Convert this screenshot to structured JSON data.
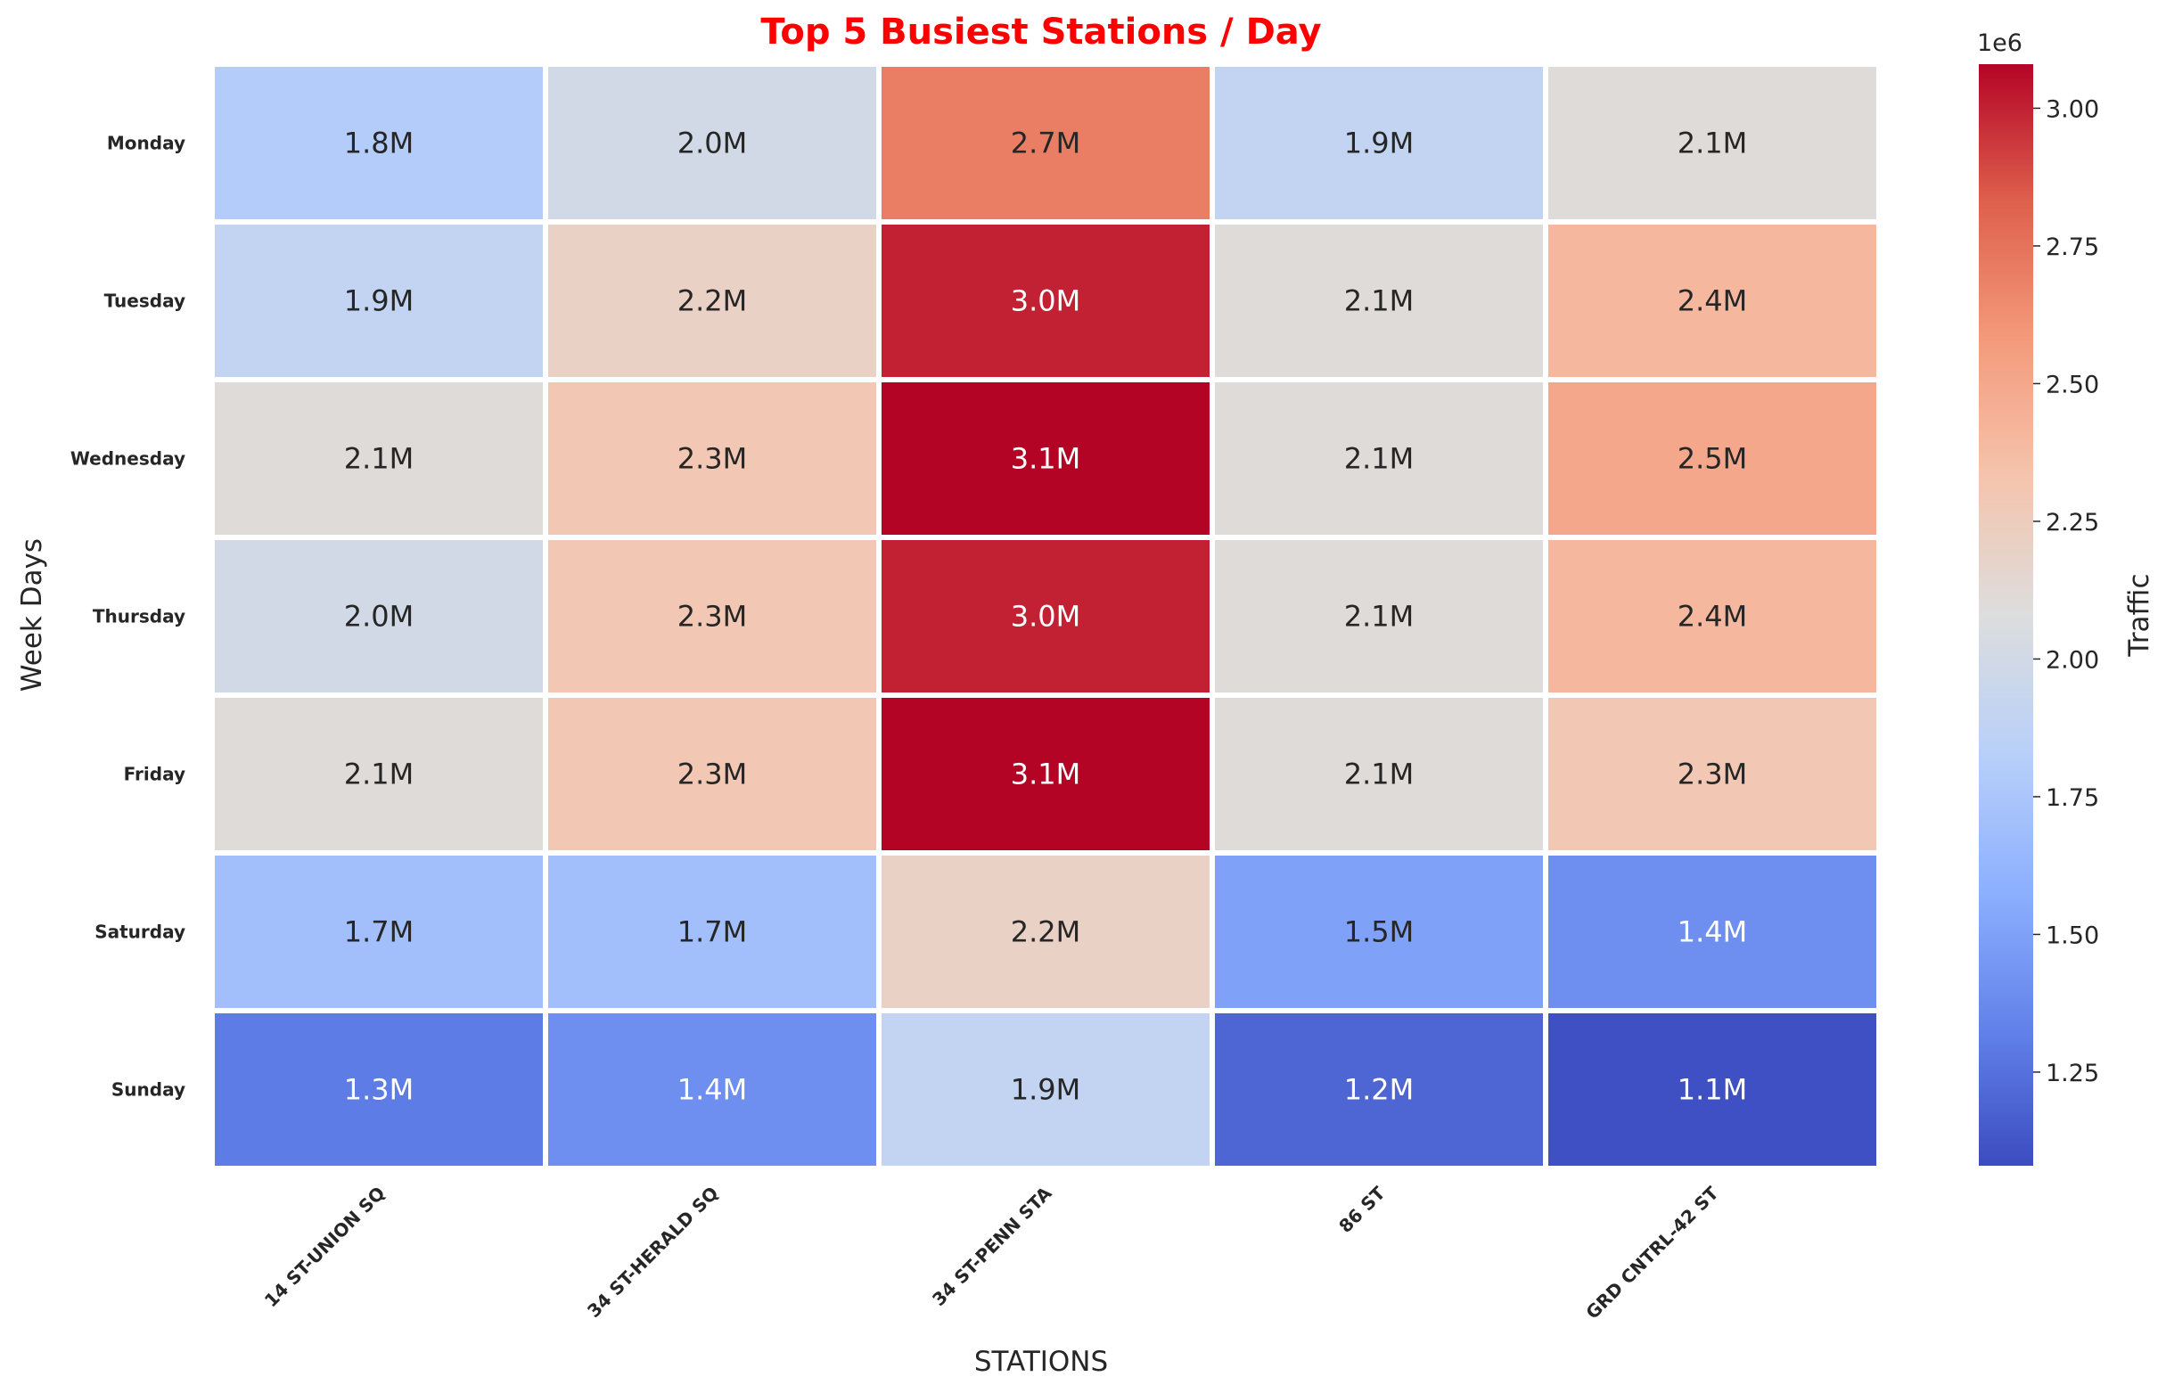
{
  "chart_data": {
    "type": "heatmap",
    "title": "Top 5 Busiest Stations / Day",
    "title_color": "#ff0000",
    "xlabel": "STATIONS",
    "ylabel": "Week Days",
    "x_categories": [
      "14 ST-UNION SQ",
      "34 ST-HERALD SQ",
      "34 ST-PENN STA",
      "86 ST",
      "GRD CNTRL-42 ST"
    ],
    "y_categories": [
      "Monday",
      "Tuesday",
      "Wednesday",
      "Thursday",
      "Friday",
      "Saturday",
      "Sunday"
    ],
    "values": [
      [
        1800000,
        2000000,
        2700000,
        1900000,
        2100000
      ],
      [
        1900000,
        2200000,
        3000000,
        2100000,
        2400000
      ],
      [
        2100000,
        2300000,
        3100000,
        2100000,
        2500000
      ],
      [
        2000000,
        2300000,
        3000000,
        2100000,
        2400000
      ],
      [
        2100000,
        2300000,
        3100000,
        2100000,
        2300000
      ],
      [
        1700000,
        1700000,
        2200000,
        1500000,
        1400000
      ],
      [
        1300000,
        1400000,
        1900000,
        1200000,
        1100000
      ]
    ],
    "annotations": [
      [
        "1.8M",
        "2.0M",
        "2.7M",
        "1.9M",
        "2.1M"
      ],
      [
        "1.9M",
        "2.2M",
        "3.0M",
        "2.1M",
        "2.4M"
      ],
      [
        "2.1M",
        "2.3M",
        "3.1M",
        "2.1M",
        "2.5M"
      ],
      [
        "2.0M",
        "2.3M",
        "3.0M",
        "2.1M",
        "2.4M"
      ],
      [
        "2.1M",
        "2.3M",
        "3.1M",
        "2.1M",
        "2.3M"
      ],
      [
        "1.7M",
        "1.7M",
        "2.2M",
        "1.5M",
        "1.4M"
      ],
      [
        "1.3M",
        "1.4M",
        "1.9M",
        "1.2M",
        "1.1M"
      ]
    ],
    "colormap": "coolwarm",
    "color_range": [
      1080000,
      3080000
    ],
    "colorbar": {
      "label": "Traffic",
      "offset_text": "1e6",
      "ticks": [
        1.25,
        1.5,
        1.75,
        2.0,
        2.25,
        2.5,
        2.75,
        3.0
      ],
      "tick_labels": [
        "1.25",
        "1.50",
        "1.75",
        "2.00",
        "2.25",
        "2.50",
        "2.75",
        "3.00"
      ]
    }
  }
}
